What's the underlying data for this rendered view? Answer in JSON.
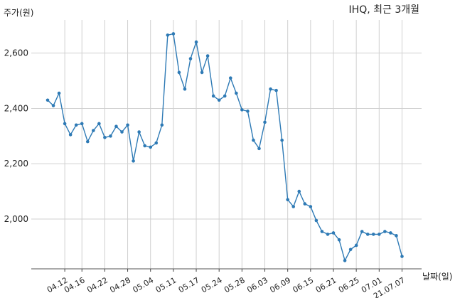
{
  "chart_data": {
    "type": "line",
    "title": "IHQ, 최근 3개월",
    "ylabel": "주가(원)",
    "xlabel": "날짜(일)",
    "color": "#2e7ab5",
    "grid": true,
    "ylim": [
      1820,
      2720
    ],
    "yticks": [
      2000,
      2200,
      2400,
      2600
    ],
    "ytick_labels": [
      "2,000",
      "2,200",
      "2,400",
      "2,600"
    ],
    "xtick_labels": [
      "04.12",
      "04.16",
      "04.22",
      "04.28",
      "05.04",
      "05.11",
      "05.17",
      "05.24",
      "05.28",
      "06.03",
      "06.09",
      "06.15",
      "06.21",
      "06.25",
      "07.01",
      "21.07.07"
    ],
    "xtick_index": [
      3,
      6,
      10,
      14,
      18,
      22,
      26,
      30,
      34,
      38,
      42,
      46,
      50,
      54,
      58,
      62
    ],
    "values": [
      2430,
      2410,
      2455,
      2345,
      2305,
      2340,
      2345,
      2280,
      2320,
      2345,
      2295,
      2300,
      2335,
      2315,
      2340,
      2210,
      2315,
      2265,
      2260,
      2275,
      2340,
      2665,
      2670,
      2530,
      2470,
      2580,
      2640,
      2530,
      2590,
      2445,
      2430,
      2445,
      2510,
      2455,
      2395,
      2390,
      2285,
      2255,
      2350,
      2470,
      2465,
      2285,
      2070,
      2045,
      2100,
      2055,
      2045,
      1995,
      1955,
      1945,
      1950,
      1925,
      1850,
      1890,
      1905,
      1955,
      1945,
      1945,
      1945,
      1955,
      1950,
      1940,
      1865
    ]
  }
}
